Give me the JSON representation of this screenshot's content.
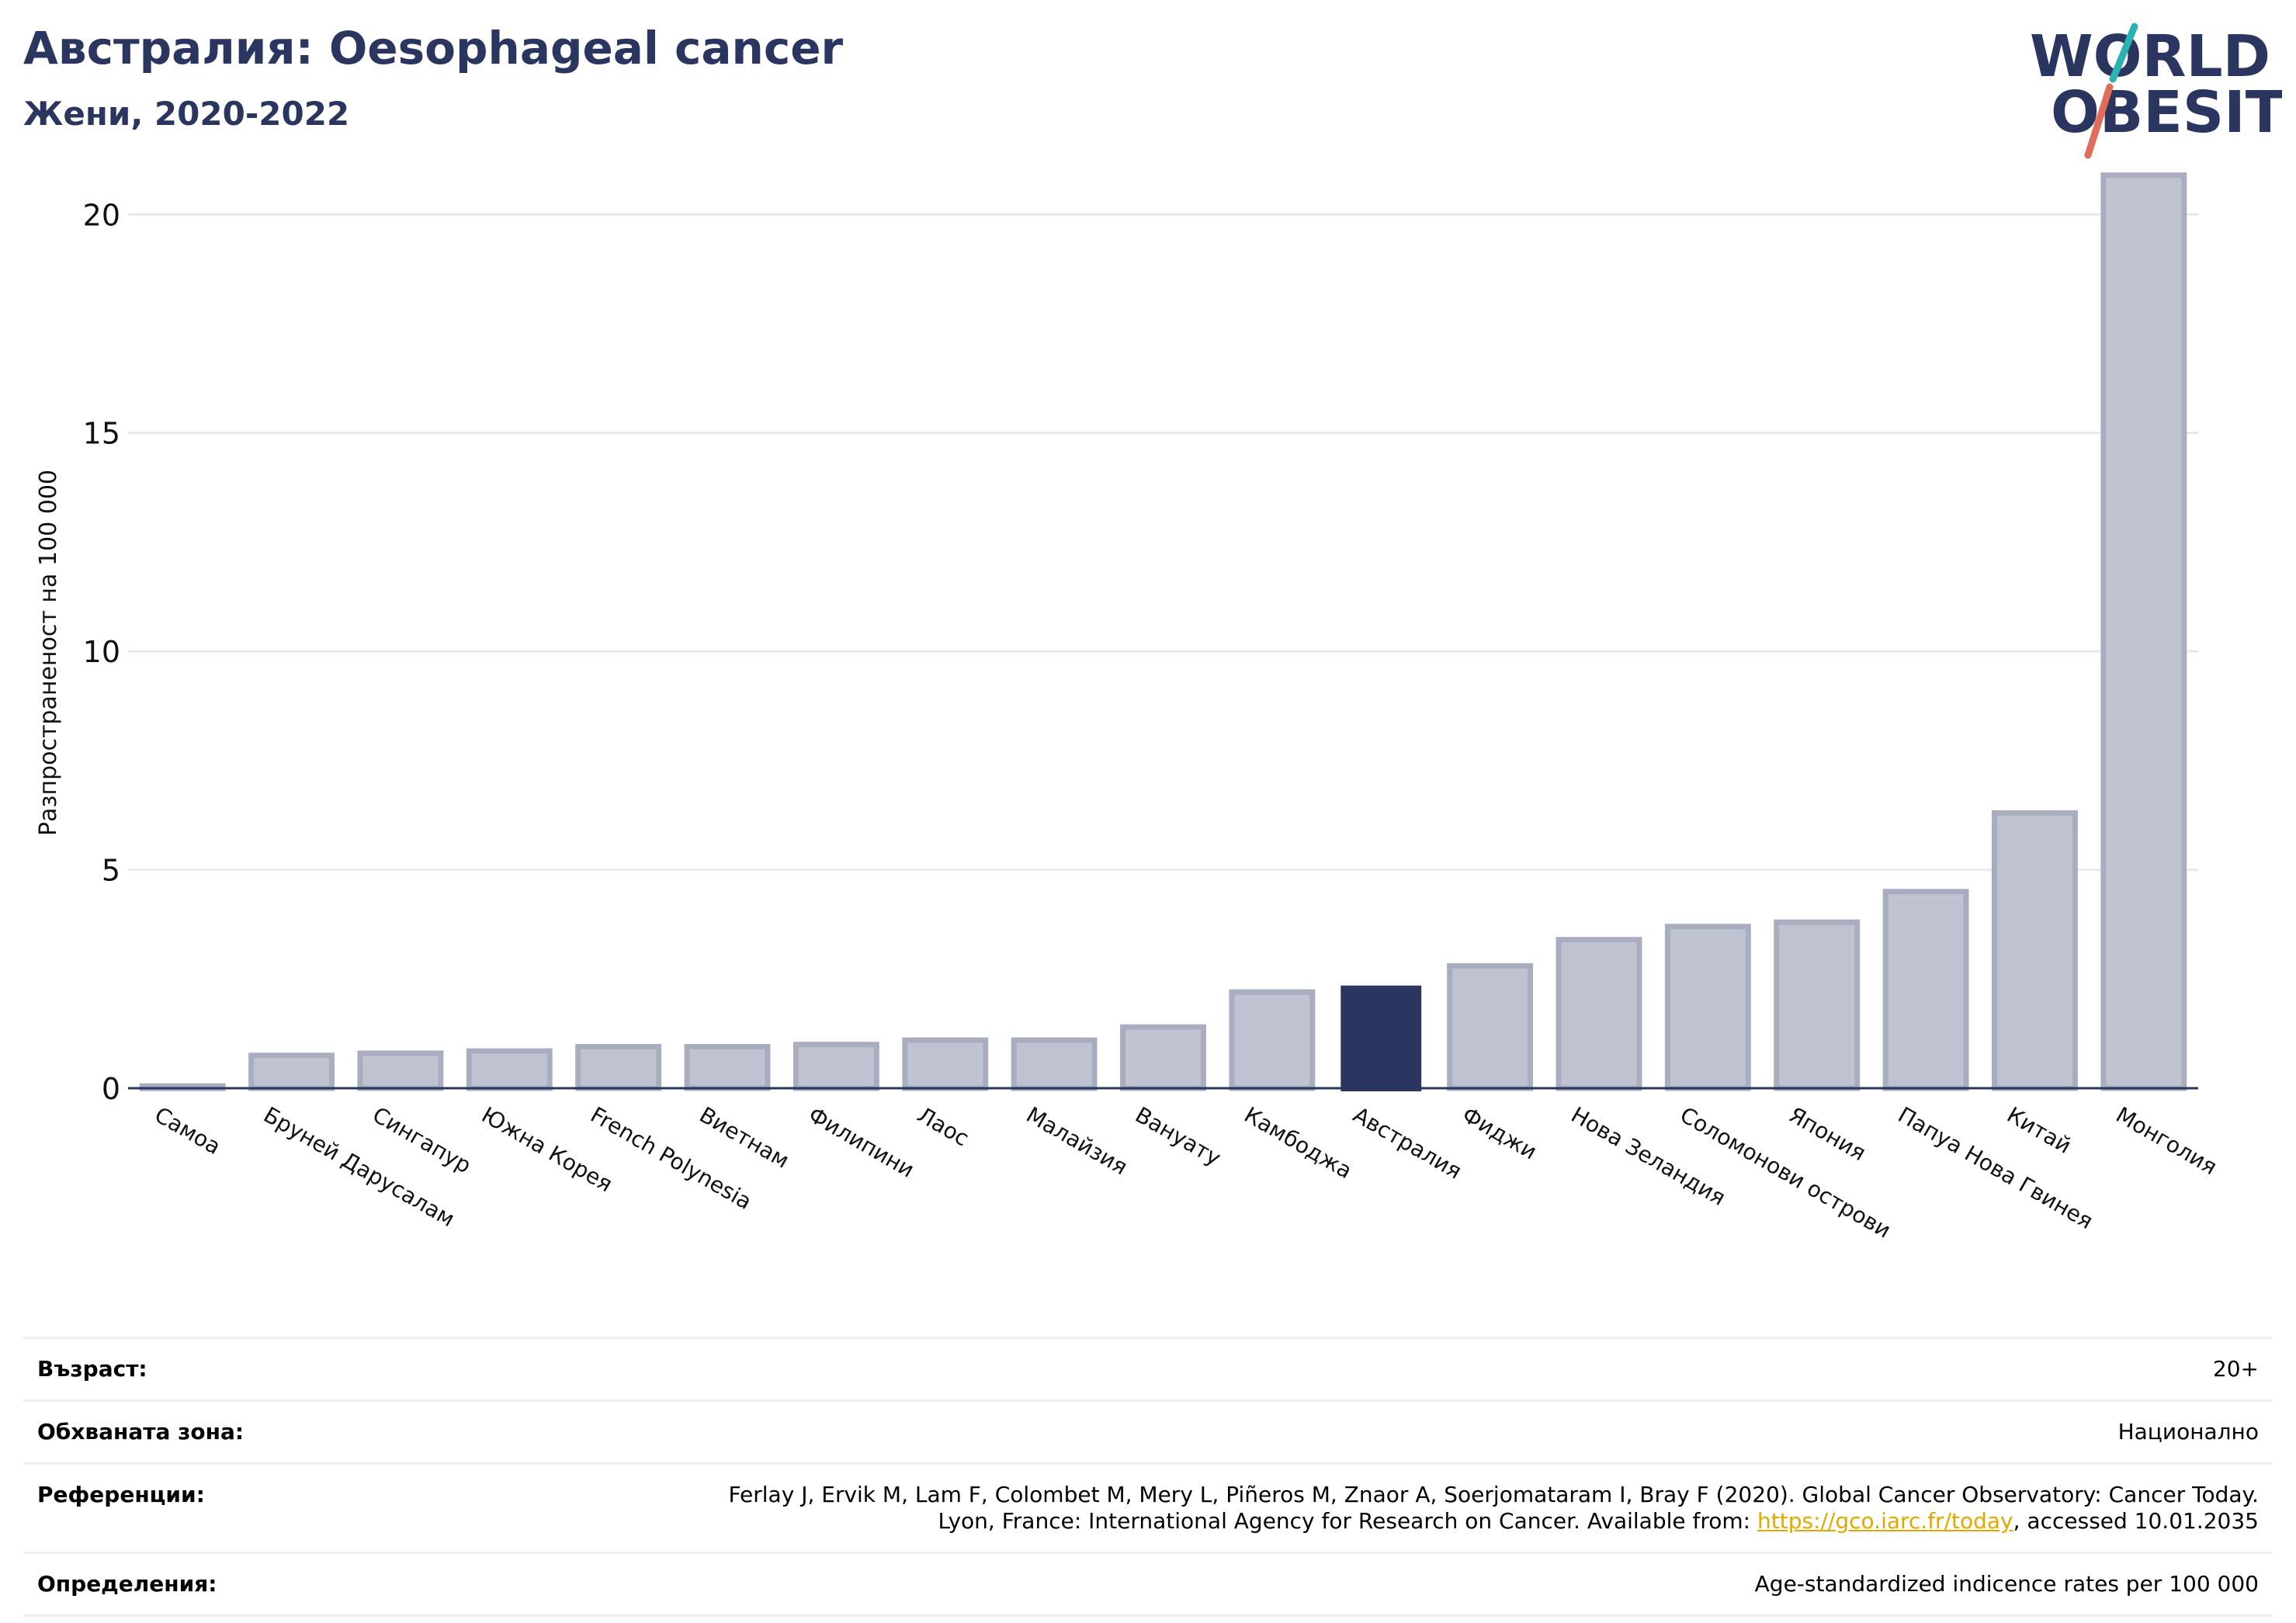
{
  "header": {
    "title": "Австралия: Oesophageal cancer",
    "subtitle": "Жени, 2020-2022"
  },
  "logo": {
    "line1": "WORLD",
    "line2": "OBESITY",
    "colors": {
      "text": "#2a3560",
      "slash_top": "#2bb3b1",
      "slash_bottom": "#e06c5a"
    }
  },
  "chart_data": {
    "type": "bar",
    "ylabel": "Разпространеност  на 100 000",
    "ylim": [
      0,
      21
    ],
    "yticks": [
      0,
      5,
      10,
      15,
      20
    ],
    "grid": true,
    "highlight_category": "Австралия",
    "colors": {
      "bar": "#2a3560",
      "bar_faded_fill": "#c0c3d0",
      "bar_faded_stroke": "#a8adc0",
      "grid": "#e6e9ef",
      "axis": "#2a3560"
    },
    "categories": [
      "Самоа",
      "Бруней Дарусалам",
      "Сингапур",
      "Южна Корея",
      "French Polynesia",
      "Виетнам",
      "Филипини",
      "Лаос",
      "Малайзия",
      "Вануату",
      "Камбоджа",
      "Австралия",
      "Фиджи",
      "Нова Зеландия",
      "Соломонови острови",
      "Япония",
      "Папуа Нова Гвинея",
      "Китай",
      "Монголия"
    ],
    "values": [
      0.05,
      0.75,
      0.8,
      0.85,
      0.95,
      0.95,
      1.0,
      1.1,
      1.1,
      1.4,
      2.2,
      2.35,
      2.8,
      3.4,
      3.7,
      3.8,
      4.5,
      6.3,
      20.9
    ]
  },
  "info": {
    "age_label": "Възраст:",
    "age_value": "20+",
    "coverage_label": "Обхваната зона:",
    "coverage_value": "Национално",
    "references_label": "Референции:",
    "references_line1": "Ferlay J, Ervik M, Lam F, Colombet M, Mery L, Piñeros M, Znaor A, Soerjomataram I, Bray F (2020). Global Cancer Observatory: Cancer Today.",
    "references_line2_prefix": "Lyon, France: International Agency for Research on Cancer. Available from: ",
    "references_link": "https://gco.iarc.fr/today",
    "references_line2_suffix": ", accessed 10.01.2035",
    "definitions_label": "Определения:",
    "definitions_value": "Age-standardized indicence rates per 100 000"
  }
}
